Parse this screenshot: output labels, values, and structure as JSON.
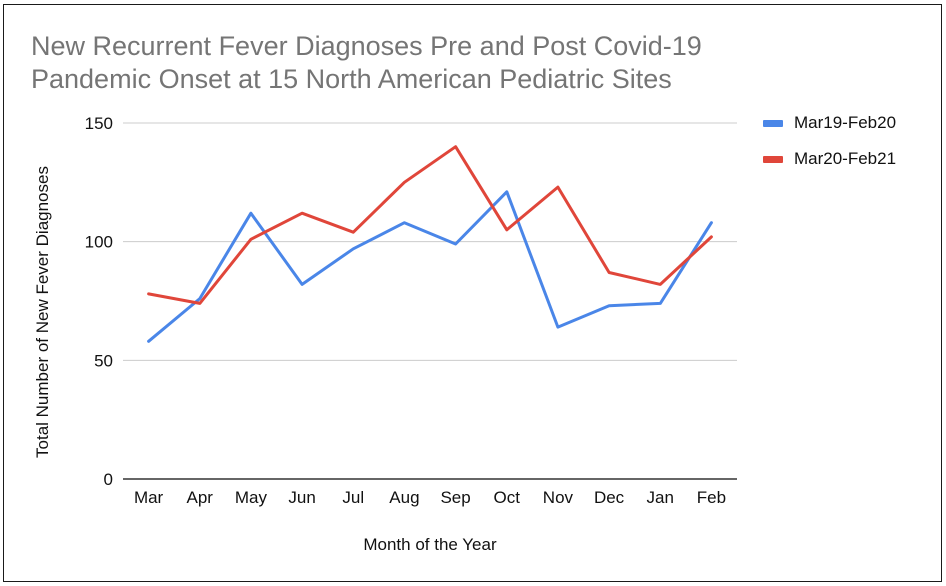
{
  "chart_data": {
    "type": "line",
    "title_lines": [
      "New Recurrent Fever Diagnoses Pre and Post Covid-19",
      "Pandemic Onset at 15 North American Pediatric Sites"
    ],
    "xlabel": "Month of the Year",
    "ylabel": "Total Number of New Fever Diagnoses",
    "categories": [
      "Mar",
      "Apr",
      "May",
      "Jun",
      "Jul",
      "Aug",
      "Sep",
      "Oct",
      "Nov",
      "Dec",
      "Jan",
      "Feb"
    ],
    "ylim": [
      0,
      150
    ],
    "yticks": [
      0,
      50,
      100,
      150
    ],
    "grid": true,
    "legend_position": "right",
    "series": [
      {
        "name": "Mar19-Feb20",
        "color": "#4a86e8",
        "values": [
          58,
          76,
          112,
          82,
          97,
          108,
          99,
          121,
          64,
          73,
          74,
          108
        ]
      },
      {
        "name": "Mar20-Feb21",
        "color": "#e0463a",
        "values": [
          78,
          74,
          101,
          112,
          104,
          125,
          140,
          105,
          123,
          87,
          82,
          102
        ]
      }
    ]
  }
}
